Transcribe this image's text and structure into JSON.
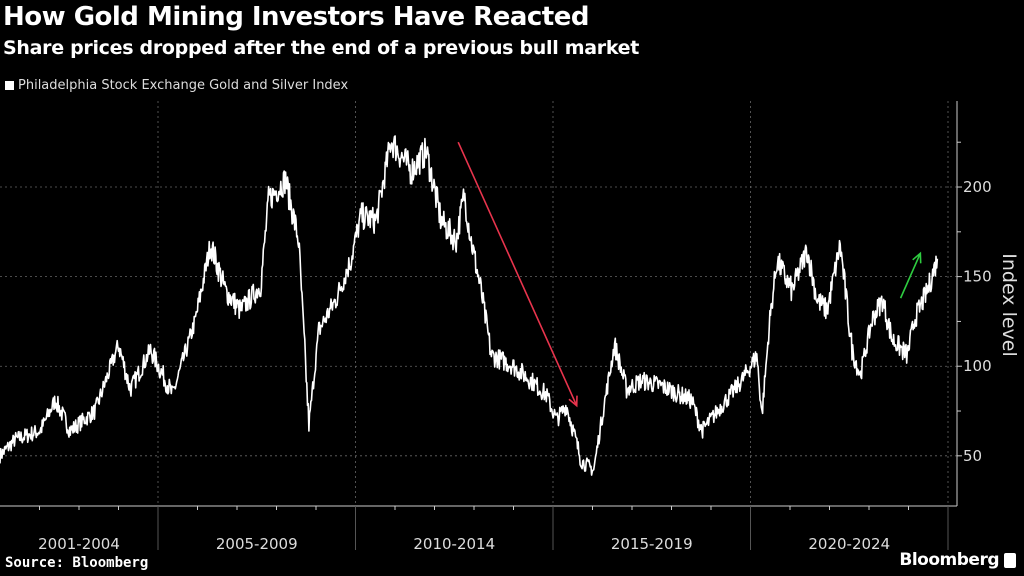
{
  "title": "How Gold Mining Investors Have Reacted",
  "subtitle": "Share prices dropped after the end of a previous bull market",
  "source": "Source: Bloomberg",
  "brand": "Bloomberg",
  "colors": {
    "line": "#ffffff",
    "down_arrow": "#e8344d",
    "up_arrow": "#2ecc40",
    "grid": "#666666"
  },
  "chart_data": {
    "type": "line",
    "title": "How Gold Mining Investors Have Reacted",
    "subtitle": "Share prices dropped after the end of a previous bull market",
    "ylabel": "Index level",
    "xlabel": "",
    "ylim": [
      22,
      248
    ],
    "xlim": [
      2001,
      2025
    ],
    "yticks": [
      50,
      100,
      150,
      200
    ],
    "x_groups": [
      {
        "label": "2001-2004",
        "start": 2001,
        "end": 2005
      },
      {
        "label": "2005-2009",
        "start": 2005,
        "end": 2010
      },
      {
        "label": "2010-2014",
        "start": 2010,
        "end": 2015
      },
      {
        "label": "2015-2019",
        "start": 2015,
        "end": 2020
      },
      {
        "label": "2020-2024",
        "start": 2020,
        "end": 2025
      }
    ],
    "grid": true,
    "legend": {
      "position": "top-left",
      "entries": [
        "Philadelphia Stock Exchange Gold and Silver Index"
      ]
    },
    "series": [
      {
        "name": "Philadelphia Stock Exchange Gold and Silver Index",
        "points": [
          [
            2001.0,
            50
          ],
          [
            2001.38,
            59
          ],
          [
            2002.02,
            64
          ],
          [
            2002.4,
            81
          ],
          [
            2002.78,
            64
          ],
          [
            2003.41,
            75
          ],
          [
            2004.0,
            112
          ],
          [
            2004.3,
            87
          ],
          [
            2004.81,
            109
          ],
          [
            2005.37,
            84
          ],
          [
            2005.95,
            126
          ],
          [
            2006.33,
            168
          ],
          [
            2006.71,
            142
          ],
          [
            2007.09,
            131
          ],
          [
            2007.6,
            145
          ],
          [
            2007.8,
            193
          ],
          [
            2008.23,
            204
          ],
          [
            2008.56,
            170
          ],
          [
            2008.82,
            67
          ],
          [
            2009.07,
            120
          ],
          [
            2009.5,
            137
          ],
          [
            2009.88,
            159
          ],
          [
            2010.14,
            184
          ],
          [
            2010.52,
            181
          ],
          [
            2010.9,
            226
          ],
          [
            2011.41,
            209
          ],
          [
            2011.79,
            220
          ],
          [
            2012.17,
            181
          ],
          [
            2012.55,
            170
          ],
          [
            2012.75,
            196
          ],
          [
            2012.93,
            170
          ],
          [
            2013.18,
            142
          ],
          [
            2013.44,
            106
          ],
          [
            2013.94,
            101
          ],
          [
            2014.45,
            92
          ],
          [
            2014.83,
            84
          ],
          [
            2015.09,
            70
          ],
          [
            2015.34,
            78
          ],
          [
            2015.72,
            47
          ],
          [
            2016.03,
            42
          ],
          [
            2016.23,
            70
          ],
          [
            2016.56,
            112
          ],
          [
            2016.86,
            87
          ],
          [
            2017.24,
            92
          ],
          [
            2017.75,
            89
          ],
          [
            2018.51,
            81
          ],
          [
            2018.77,
            64
          ],
          [
            2019.27,
            78
          ],
          [
            2019.78,
            92
          ],
          [
            2020.16,
            106
          ],
          [
            2020.29,
            73
          ],
          [
            2020.49,
            126
          ],
          [
            2020.67,
            159
          ],
          [
            2021.05,
            142
          ],
          [
            2021.43,
            165
          ],
          [
            2021.69,
            137
          ],
          [
            2021.94,
            131
          ],
          [
            2022.27,
            168
          ],
          [
            2022.57,
            109
          ],
          [
            2022.78,
            95
          ],
          [
            2023.08,
            126
          ],
          [
            2023.34,
            137
          ],
          [
            2023.59,
            115
          ],
          [
            2023.97,
            106
          ],
          [
            2024.15,
            126
          ],
          [
            2024.48,
            142
          ],
          [
            2024.73,
            160
          ]
        ]
      }
    ],
    "annotations": [
      {
        "type": "arrow",
        "color": "#e8344d",
        "from": [
          2012.6,
          225
        ],
        "to": [
          2015.6,
          78
        ]
      },
      {
        "type": "arrow",
        "color": "#2ecc40",
        "from": [
          2023.8,
          138
        ],
        "to": [
          2024.3,
          163
        ]
      }
    ]
  }
}
